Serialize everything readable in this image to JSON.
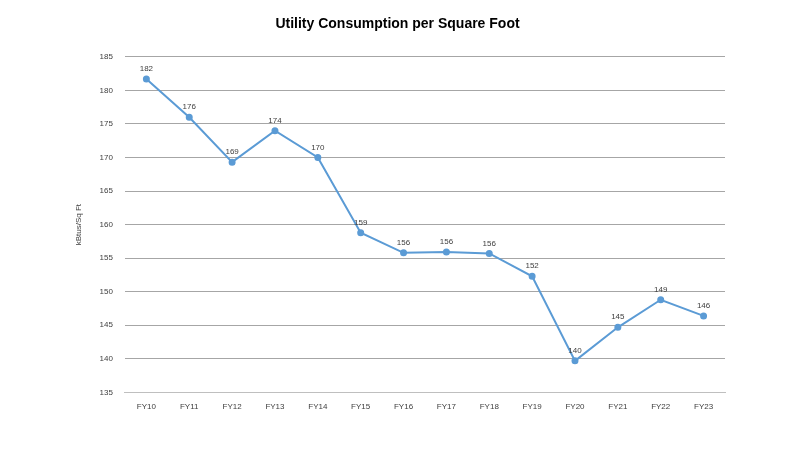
{
  "chart_data": {
    "type": "line",
    "title": "Utility Consumption per Square Foot",
    "y_label": "kBtus/Sq Ft",
    "categories": [
      "FY10",
      "FY11",
      "FY12",
      "FY13",
      "FY14",
      "FY15",
      "FY16",
      "FY17",
      "FY18",
      "FY19",
      "FY20",
      "FY21",
      "FY22",
      "FY23"
    ],
    "values": [
      181.7,
      176.0,
      169.3,
      174.0,
      170.0,
      158.8,
      155.8,
      155.9,
      155.7,
      152.3,
      139.7,
      144.7,
      148.8,
      146.4
    ],
    "value_labels": [
      "182",
      "176",
      "169",
      "174",
      "170",
      "159",
      "156",
      "156",
      "156",
      "152",
      "140",
      "145",
      "149",
      "146"
    ],
    "color": "#5b9bd5",
    "marker": "circle",
    "ylim": [
      135,
      185
    ],
    "yticks": [
      135,
      140,
      145,
      150,
      155,
      160,
      165,
      170,
      175,
      180,
      185
    ],
    "grid": true,
    "data_labels": true
  }
}
